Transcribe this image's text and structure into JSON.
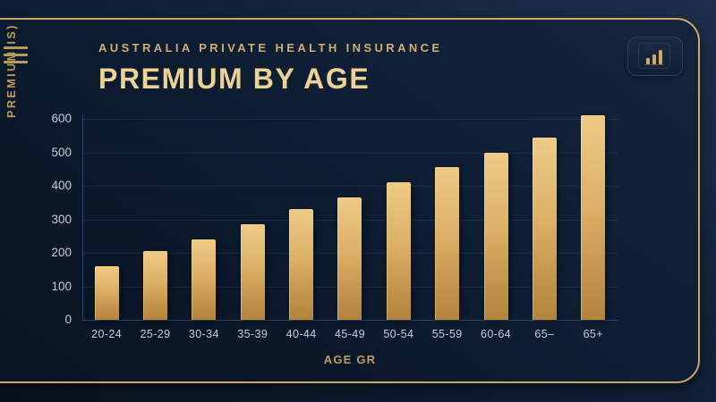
{
  "header": {
    "subtitle": "AUSTRALIA PRIVATE HEALTH INSURANCE",
    "title": "PREMIUM BY AGE"
  },
  "icons": {
    "menu": "hamburger-menu-icon",
    "chart_button": "bar-chart-icon"
  },
  "chart_data": {
    "type": "bar",
    "title": "PREMIUM BY AGE",
    "xlabel": "AGE GR",
    "ylabel": "PREMIUM IS)",
    "categories": [
      "20-24",
      "25-29",
      "30-34",
      "35-39",
      "40-44",
      "45-49",
      "50-54",
      "55-59",
      "60-64",
      "65–",
      "65+"
    ],
    "values": [
      160,
      205,
      240,
      285,
      330,
      365,
      410,
      455,
      500,
      545,
      610
    ],
    "ylim": [
      0,
      600
    ],
    "yticks": [
      0,
      100,
      200,
      300,
      400,
      500,
      600
    ],
    "grid": true,
    "legend": "none",
    "bar_color_top": "#eecb86",
    "bar_color_bottom": "#b2843c"
  },
  "colors": {
    "background": "#0e1d32",
    "frame_gold": "#c9a868",
    "title_gold": "#ecd395",
    "subtitle_gold": "#cfae72",
    "tick_text": "#c5ccd8",
    "axis_line": "#31445f"
  }
}
